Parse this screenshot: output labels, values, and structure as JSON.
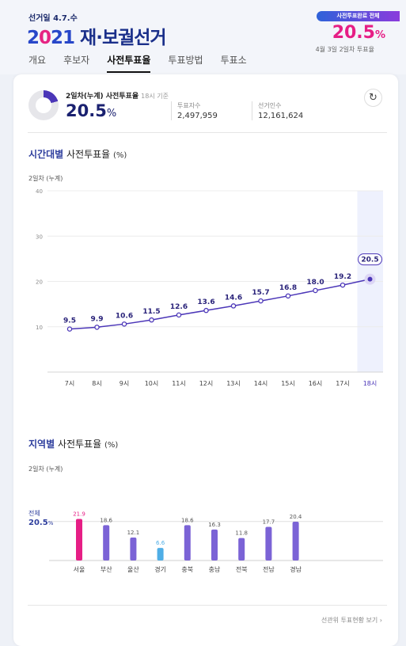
{
  "header": {
    "election_date": "선거일 4.7.수",
    "logo_year_a": "2",
    "logo_year_b": "0",
    "logo_year_c": "21",
    "logo_title": " 재·보궐선거",
    "badge": "사전투표완료 전체",
    "rate": "20.5",
    "rate_unit": "%",
    "rate_sub": "4월 3일 2일차 투표율"
  },
  "tabs": [
    {
      "label": "개요"
    },
    {
      "label": "후보자"
    },
    {
      "label": "사전투표율"
    },
    {
      "label": "투표방법"
    },
    {
      "label": "투표소"
    }
  ],
  "summary": {
    "label": "2일차(누계) 사전투표율",
    "basis": "18시 기준",
    "value": "20.5",
    "unit": "%",
    "voters_label": "투표자수",
    "voters": "2,497,959",
    "electorate_label": "선거인수",
    "electorate": "12,161,624",
    "progress_fraction": 0.205
  },
  "time_section": {
    "title_accent": "시간대별",
    "title_rest": " 사전투표율 ",
    "title_unit": "(%)",
    "sub": "2일차 (누계)"
  },
  "region_section": {
    "title_accent": "지역별",
    "title_rest": " 사전투표율 ",
    "title_unit": "(%)",
    "sub": "2일차 (누계)",
    "total_label": "전체",
    "total_value": "20.5",
    "total_unit": "%"
  },
  "footer": {
    "more": "선관위 투표현황 보기 ›"
  },
  "colors": {
    "accent_pink": "#e61e85",
    "line_purple": "#4b36b8",
    "bar_purple": "#7b63d6",
    "bar_blue": "#4faee6"
  },
  "chart_data": [
    {
      "type": "line",
      "categories": [
        "7시",
        "8시",
        "9시",
        "10시",
        "11시",
        "12시",
        "13시",
        "14시",
        "15시",
        "16시",
        "17시",
        "18시"
      ],
      "values": [
        9.5,
        9.9,
        10.6,
        11.5,
        12.6,
        13.6,
        14.6,
        15.7,
        16.8,
        18.0,
        19.2,
        20.5
      ],
      "value_labels": [
        "9.5",
        "9.9",
        "10.6",
        "11.5",
        "12.6",
        "13.6",
        "14.6",
        "15.7",
        "16.8",
        "18.0",
        "19.2",
        "20.5"
      ],
      "yticks": [
        "10",
        "20",
        "30",
        "40"
      ],
      "ylim": [
        0,
        40
      ],
      "grid": true,
      "highlight_category": "18시"
    },
    {
      "type": "bar",
      "categories": [
        "서울",
        "부산",
        "울산",
        "경기",
        "충북",
        "충남",
        "전북",
        "전남",
        "경남"
      ],
      "values": [
        21.9,
        18.6,
        12.1,
        6.6,
        18.6,
        16.3,
        11.8,
        17.7,
        20.4
      ],
      "value_labels": [
        "21.9",
        "18.6",
        "12.1",
        "6.6",
        "18.6",
        "16.3",
        "11.8",
        "17.7",
        "20.4"
      ],
      "bar_colors": [
        "#e61e85",
        "#7b63d6",
        "#7b63d6",
        "#4faee6",
        "#7b63d6",
        "#7b63d6",
        "#7b63d6",
        "#7b63d6",
        "#7b63d6"
      ],
      "reference_value": 20.5,
      "ylim": [
        0,
        25
      ]
    }
  ]
}
